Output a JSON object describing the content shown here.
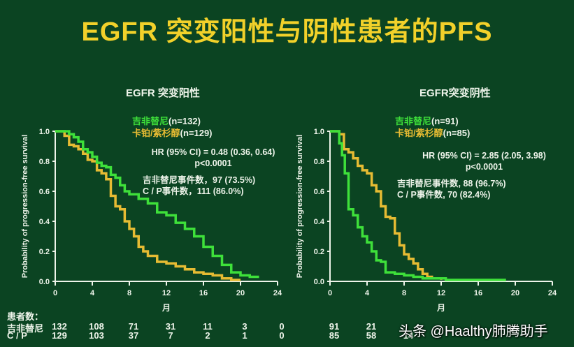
{
  "title": "EGFR 突变阳性与阴性患者的PFS",
  "watermark": "头条 @Haalthy肺腾助手",
  "colors": {
    "background": "#0b4422",
    "title": "#f2d12a",
    "gefitinib": "#3ee03a",
    "cp": "#e6bb33",
    "text": "#eef4ea"
  },
  "left": {
    "title": "EGFR 突变阳性",
    "legend_g": "吉非替尼",
    "legend_g_n": "(n=132)",
    "legend_y": "卡铂/紫杉醇",
    "legend_y_n": "(n=129)",
    "hr": "HR (95% CI) = 0.48 (0.36, 0.64)",
    "p": "p<0.0001",
    "events_g": "吉非替尼事件数，97 (73.5%)",
    "events_cp": "C / P事件数，111 (86.0%)"
  },
  "right": {
    "title": "EGFR突变阴性",
    "legend_g": "吉非替尼",
    "legend_g_n": "(n=91)",
    "legend_y": "卡铂/紫杉醇",
    "legend_y_n": "(n=85)",
    "hr": "HR (95% CI) = 2.85 (2.05, 3.98)",
    "p": "p<0.0001",
    "events_g": "吉非替尼事件数, 88 (96.7%)",
    "events_cp": "C / P事件数, 70 (82.4%)"
  },
  "axis": {
    "ylabel": "Probability of progression-free survival",
    "xlabel": "月",
    "yticks": [
      "1.0",
      "0.8",
      "0.6",
      "0.4",
      "0.2",
      "0.0"
    ],
    "xticks": [
      "0",
      "4",
      "8",
      "12",
      "16",
      "20",
      "24"
    ]
  },
  "risk": {
    "header": "患者数：",
    "row_g_label": "吉非替尼",
    "row_cp_label": "C / P",
    "left_g": [
      "132",
      "108",
      "71",
      "31",
      "11",
      "3",
      "0"
    ],
    "left_cp": [
      "129",
      "103",
      "37",
      "7",
      "2",
      "1",
      "0"
    ],
    "right_g": [
      "91",
      "21"
    ],
    "right_cp": [
      "85",
      "58",
      "14"
    ]
  },
  "chart_data": [
    {
      "type": "line",
      "title": "EGFR 突变阳性",
      "xlabel": "月",
      "ylabel": "Probability of progression-free survival",
      "xlim": [
        0,
        24
      ],
      "ylim": [
        0,
        1.0
      ],
      "xticks": [
        0,
        4,
        8,
        12,
        16,
        20,
        24
      ],
      "yticks": [
        0,
        0.2,
        0.4,
        0.6,
        0.8,
        1.0
      ],
      "series": [
        {
          "name": "吉非替尼 (n=132)",
          "color": "#3ee03a",
          "x": [
            0,
            1,
            1.5,
            2,
            2.5,
            3,
            3.5,
            4,
            4.5,
            5,
            5.5,
            6,
            6.5,
            7,
            7.5,
            8,
            9,
            10,
            11,
            12,
            13,
            14,
            15,
            16,
            17,
            18,
            19,
            20,
            21,
            22
          ],
          "y": [
            1.0,
            1.0,
            0.98,
            0.96,
            0.93,
            0.88,
            0.86,
            0.83,
            0.79,
            0.77,
            0.76,
            0.71,
            0.69,
            0.64,
            0.6,
            0.58,
            0.55,
            0.52,
            0.46,
            0.44,
            0.39,
            0.35,
            0.3,
            0.23,
            0.17,
            0.11,
            0.06,
            0.04,
            0.03,
            0.03
          ]
        },
        {
          "name": "卡铂/紫杉醇 (n=129)",
          "color": "#e6bb33",
          "x": [
            0,
            1,
            1.5,
            2,
            2.5,
            3,
            3.5,
            4,
            4.5,
            5,
            5.5,
            6,
            6.5,
            7,
            7.5,
            8,
            8.5,
            9,
            9.5,
            10,
            11,
            12,
            13,
            14,
            15,
            16,
            17,
            18,
            19,
            20
          ],
          "y": [
            1.0,
            0.97,
            0.91,
            0.9,
            0.88,
            0.85,
            0.81,
            0.8,
            0.74,
            0.72,
            0.68,
            0.57,
            0.5,
            0.48,
            0.4,
            0.35,
            0.3,
            0.23,
            0.2,
            0.17,
            0.13,
            0.12,
            0.1,
            0.08,
            0.06,
            0.05,
            0.04,
            0.02,
            0.01,
            0.01
          ]
        }
      ],
      "annotations": [
        "HR (95% CI) = 0.48 (0.36, 0.64)",
        "p<0.0001",
        "吉非替尼事件数，97 (73.5%)",
        "C / P事件数，111 (86.0%)"
      ],
      "at_risk": {
        "吉非替尼": [
          132,
          108,
          71,
          31,
          11,
          3,
          0
        ],
        "C / P": [
          129,
          103,
          37,
          7,
          2,
          1,
          0
        ]
      }
    },
    {
      "type": "line",
      "title": "EGFR突变阴性",
      "xlabel": "月",
      "ylabel": "Probability of progression-free survival",
      "xlim": [
        0,
        24
      ],
      "ylim": [
        0,
        1.0
      ],
      "xticks": [
        0,
        4,
        8,
        12,
        16,
        20,
        24
      ],
      "yticks": [
        0,
        0.2,
        0.4,
        0.6,
        0.8,
        1.0
      ],
      "series": [
        {
          "name": "吉非替尼 (n=91)",
          "color": "#3ee03a",
          "x": [
            0,
            0.5,
            1,
            1.3,
            1.6,
            2,
            2.5,
            3,
            3.5,
            4,
            4.5,
            5,
            5.5,
            6,
            7,
            8,
            9,
            10,
            12,
            12.5,
            19
          ],
          "y": [
            1.0,
            1.0,
            0.92,
            0.84,
            0.72,
            0.48,
            0.44,
            0.36,
            0.3,
            0.26,
            0.2,
            0.14,
            0.13,
            0.06,
            0.05,
            0.04,
            0.03,
            0.02,
            0.02,
            0.01,
            0.01
          ]
        },
        {
          "name": "卡铂/紫杉醇 (n=85)",
          "color": "#e6bb33",
          "x": [
            0,
            1,
            1.5,
            2,
            2.5,
            3,
            3.5,
            4,
            4.5,
            5,
            5.5,
            6,
            6.5,
            7,
            7.5,
            8,
            8.5,
            9,
            9.5,
            10,
            10.5,
            11,
            12
          ],
          "y": [
            1.0,
            0.98,
            0.88,
            0.86,
            0.82,
            0.77,
            0.74,
            0.72,
            0.64,
            0.6,
            0.5,
            0.43,
            0.42,
            0.32,
            0.24,
            0.18,
            0.15,
            0.12,
            0.08,
            0.05,
            0.03,
            0.02,
            0.01
          ]
        }
      ],
      "annotations": [
        "HR (95% CI) = 2.85 (2.05, 3.98)",
        "p<0.0001",
        "吉非替尼事件数, 88 (96.7%)",
        "C / P事件数, 70 (82.4%)"
      ],
      "at_risk": {
        "吉非替尼": [
          91,
          21
        ],
        "C / P": [
          85,
          58,
          14
        ]
      }
    }
  ]
}
